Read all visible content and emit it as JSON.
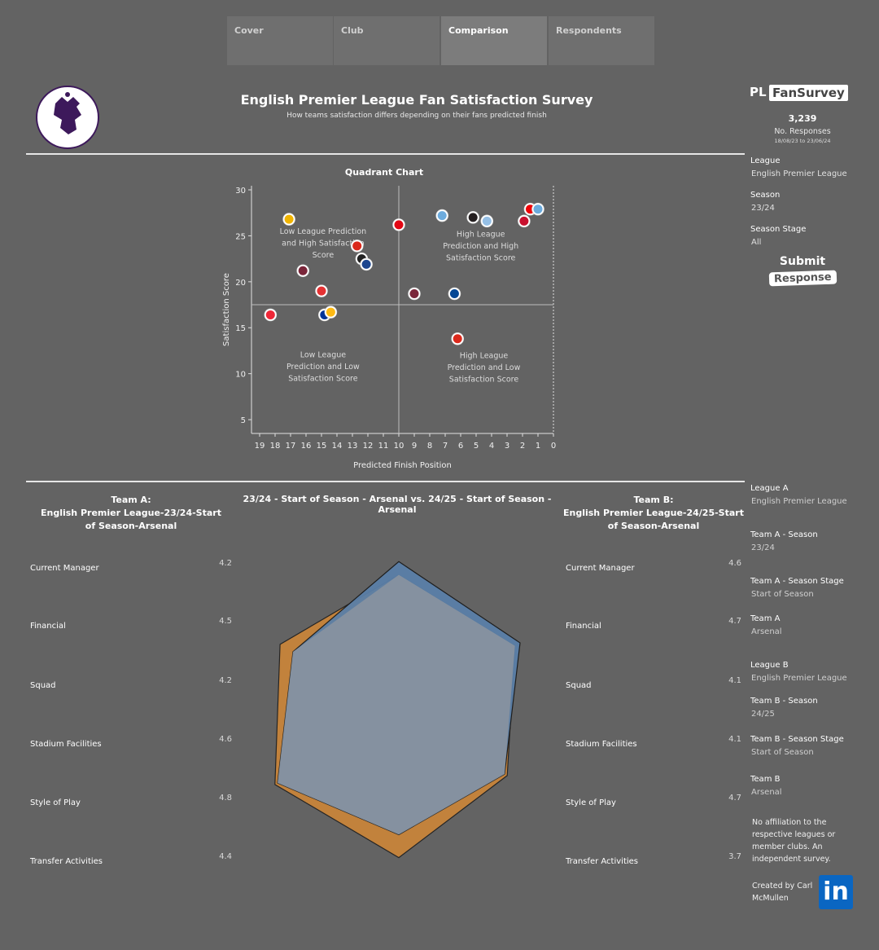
{
  "tabs": [
    {
      "label": "Cover",
      "active": false
    },
    {
      "label": "Club",
      "active": false
    },
    {
      "label": "Comparison",
      "active": true
    },
    {
      "label": "Respondents",
      "active": false
    }
  ],
  "header": {
    "title": "English Premier League Fan Satisfaction Survey",
    "subtitle": "How teams satisfaction differs depending on their fans predicted finish",
    "logo_text": "Premier League"
  },
  "brand": {
    "pl": "PL",
    "fansurvey": "FanSurvey"
  },
  "responses": {
    "count": "3,239",
    "label": "No. Responses",
    "range": "18/08/23 to 23/06/24"
  },
  "filters_top": [
    {
      "label": "League",
      "value": "English Premier League"
    },
    {
      "label": "Season",
      "value": "23/24"
    },
    {
      "label": "Season Stage",
      "value": "All"
    }
  ],
  "submit": {
    "line1": "Submit",
    "line2": "Response"
  },
  "filters_bottom": [
    {
      "label": "League A",
      "value": "English Premier League"
    },
    {
      "label": "Team A - Season",
      "value": "23/24"
    },
    {
      "label": "Team A - Season Stage",
      "value": "Start of Season"
    },
    {
      "label": "Team A",
      "value": "Arsenal"
    },
    {
      "label": "League B",
      "value": "English Premier League"
    },
    {
      "label": "Team B - Season",
      "value": "24/25"
    },
    {
      "label": "Team B - Season Stage",
      "value": "Start of Season"
    },
    {
      "label": "Team B",
      "value": "Arsenal"
    }
  ],
  "disclaimer": "No affiliation to the respective leagues or member clubs. An independent survey.",
  "created_by": "Created by Carl McMullen",
  "linkedin_label": "in",
  "chart_data": [
    {
      "type": "scatter",
      "title": "Quadrant Chart",
      "xlabel": "Predicted Finish Position",
      "ylabel": "Satisfaction Score",
      "x_reversed": true,
      "xlim": [
        0,
        19
      ],
      "ylim": [
        5,
        30
      ],
      "x_ticks": [
        19,
        18,
        17,
        16,
        15,
        14,
        13,
        12,
        11,
        10,
        9,
        8,
        7,
        6,
        5,
        4,
        3,
        2,
        1,
        0
      ],
      "y_ticks": [
        5,
        10,
        15,
        20,
        25,
        30
      ],
      "reference_lines": {
        "x": 10,
        "y": 17.5
      },
      "quadrant_labels": [
        {
          "text": "Low League Prediction and High Satisfaction Score",
          "quadrant": "top-left"
        },
        {
          "text": "High League Prediction and High Satisfaction Score",
          "quadrant": "top-right"
        },
        {
          "text": "Low League Prediction and Low Satisfaction Score",
          "quadrant": "bottom-left"
        },
        {
          "text": "High League Prediction and Low Satisfaction Score",
          "quadrant": "bottom-right"
        }
      ],
      "points": [
        {
          "x": 17.1,
          "y": 26.8,
          "color": "#f0b400"
        },
        {
          "x": 12.7,
          "y": 23.9,
          "color": "#da291c"
        },
        {
          "x": 12.4,
          "y": 22.5,
          "color": "#222222"
        },
        {
          "x": 12.1,
          "y": 21.9,
          "color": "#1b458f"
        },
        {
          "x": 16.2,
          "y": 21.2,
          "color": "#7a263a"
        },
        {
          "x": 15.0,
          "y": 19.0,
          "color": "#e53233"
        },
        {
          "x": 10.0,
          "y": 26.2,
          "color": "#e30613"
        },
        {
          "x": 7.2,
          "y": 27.2,
          "color": "#6cabdd"
        },
        {
          "x": 5.2,
          "y": 27.0,
          "color": "#241f20"
        },
        {
          "x": 4.3,
          "y": 26.6,
          "color": "#95bfe5"
        },
        {
          "x": 1.5,
          "y": 27.9,
          "color": "#ef0107"
        },
        {
          "x": 1.0,
          "y": 27.9,
          "color": "#6cabdd"
        },
        {
          "x": 1.9,
          "y": 26.6,
          "color": "#c8102e"
        },
        {
          "x": 9.0,
          "y": 18.7,
          "color": "#7a263a"
        },
        {
          "x": 6.4,
          "y": 18.7,
          "color": "#034694"
        },
        {
          "x": 18.3,
          "y": 16.4,
          "color": "#ee2737"
        },
        {
          "x": 14.8,
          "y": 16.4,
          "color": "#003399"
        },
        {
          "x": 14.4,
          "y": 16.7,
          "color": "#fdb913"
        },
        {
          "x": 6.2,
          "y": 13.8,
          "color": "#da291c"
        }
      ]
    },
    {
      "type": "radar",
      "title": "23/24 - Start of Season - Arsenal  vs.  24/25 - Start of Season - Arsenal",
      "categories": [
        "Current Manager",
        "Financial",
        "Squad",
        "Stadium Facilities",
        "Style of Play",
        "Transfer Activities"
      ],
      "series": [
        {
          "values": [
            4.2,
            4.5,
            4.2,
            4.6,
            4.8,
            4.4
          ],
          "color": "#c8843a"
        },
        {
          "values": [
            4.6,
            4.7,
            4.1,
            4.1,
            4.7,
            3.7
          ],
          "color": "#5a7fa8"
        }
      ]
    }
  ],
  "team_a": {
    "heading": "Team A:",
    "name": "English Premier League-23/24-Start of Season-Arsenal"
  },
  "team_b": {
    "heading": "Team B:",
    "name": "English Premier League-24/25-Start of Season-Arsenal"
  }
}
